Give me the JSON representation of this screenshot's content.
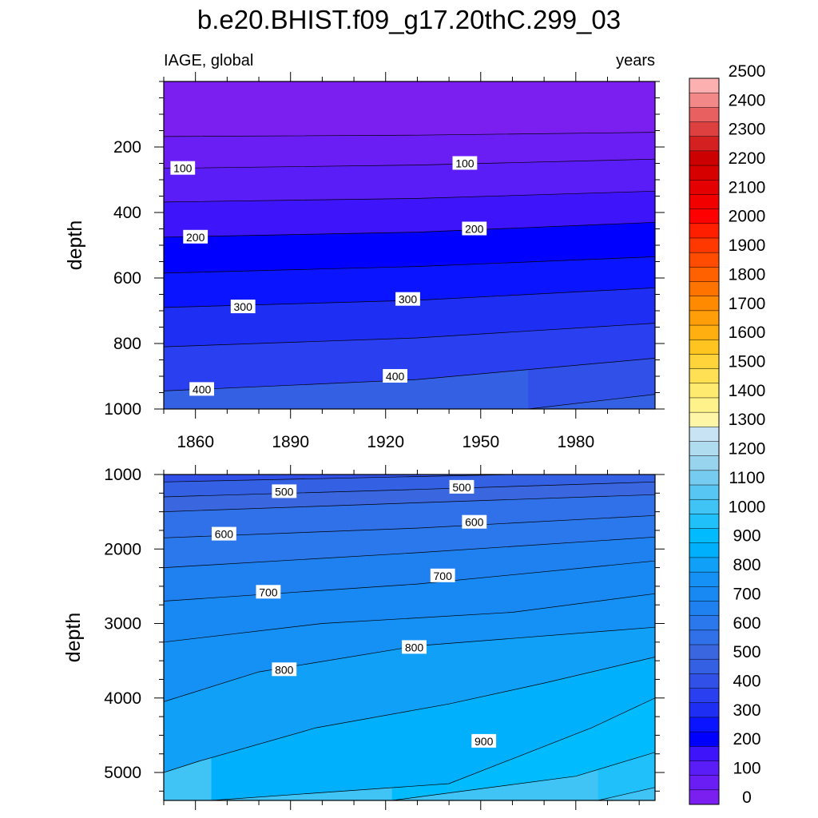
{
  "title": "b.e20.BHIST.f09_g17.20thC.299_03",
  "chart_data": [
    {
      "type": "contour",
      "panel": "upper",
      "title_left": "IAGE, global",
      "title_right": "years",
      "xlabel": "",
      "ylabel": "depth",
      "xlim": [
        1850,
        2005
      ],
      "ylim": [
        1000,
        0
      ],
      "xticks": [
        1860,
        1890,
        1920,
        1950,
        1980
      ],
      "xtick_labels": [
        "1860",
        "1890",
        "1920",
        "1950",
        "1980"
      ],
      "yticks": [
        200,
        400,
        600,
        800,
        1000
      ],
      "ytick_labels": [
        "200",
        "400",
        "600",
        "800",
        "1000"
      ],
      "contour_interval": 50,
      "contours": [
        {
          "level": 50,
          "x": [
            1850,
            1930,
            2005
          ],
          "depth": [
            168,
            164,
            155
          ]
        },
        {
          "level": 100,
          "x": [
            1850,
            1930,
            2005
          ],
          "depth": [
            265,
            255,
            237
          ]
        },
        {
          "level": 150,
          "x": [
            1850,
            1930,
            2005
          ],
          "depth": [
            368,
            357,
            335
          ]
        },
        {
          "level": 200,
          "x": [
            1850,
            1930,
            2005
          ],
          "depth": [
            475,
            460,
            430
          ]
        },
        {
          "level": 250,
          "x": [
            1850,
            1930,
            2005
          ],
          "depth": [
            585,
            565,
            535
          ]
        },
        {
          "level": 300,
          "x": [
            1850,
            1930,
            2005
          ],
          "depth": [
            690,
            668,
            630
          ]
        },
        {
          "level": 350,
          "x": [
            1850,
            1930,
            2005
          ],
          "depth": [
            810,
            783,
            738
          ]
        },
        {
          "level": 400,
          "x": [
            1850,
            1930,
            2005
          ],
          "depth": [
            945,
            910,
            845
          ]
        },
        {
          "level": 450,
          "x": [
            1965,
            2005
          ],
          "depth": [
            1000,
            955
          ]
        }
      ],
      "contour_labels": [
        {
          "text": "100",
          "x": 1856,
          "depth": 265
        },
        {
          "text": "100",
          "x": 1945,
          "depth": 250
        },
        {
          "text": "200",
          "x": 1860,
          "depth": 475
        },
        {
          "text": "200",
          "x": 1948,
          "depth": 450
        },
        {
          "text": "300",
          "x": 1875,
          "depth": 688
        },
        {
          "text": "300",
          "x": 1927,
          "depth": 665
        },
        {
          "text": "400",
          "x": 1862,
          "depth": 940
        },
        {
          "text": "400",
          "x": 1923,
          "depth": 900
        }
      ]
    },
    {
      "type": "contour",
      "panel": "lower",
      "xlabel": "",
      "ylabel": "depth",
      "xlim": [
        1850,
        2005
      ],
      "ylim": [
        5375,
        1000
      ],
      "xticks": [
        1860,
        1890,
        1920,
        1950,
        1980
      ],
      "yticks": [
        1000,
        2000,
        3000,
        4000,
        5000
      ],
      "ytick_labels": [
        "1000",
        "2000",
        "3000",
        "4000",
        "5000"
      ],
      "contour_interval": 50,
      "contours": [
        {
          "level": 450,
          "x": [
            1850,
            1960
          ],
          "depth": [
            1100,
            1000
          ]
        },
        {
          "level": 500,
          "x": [
            1850,
            1930,
            2005
          ],
          "depth": [
            1300,
            1200,
            1100
          ]
        },
        {
          "level": 550,
          "x": [
            1850,
            1930,
            2005
          ],
          "depth": [
            1500,
            1380,
            1270
          ]
        },
        {
          "level": 600,
          "x": [
            1850,
            1930,
            2005
          ],
          "depth": [
            1850,
            1720,
            1550
          ]
        },
        {
          "level": 650,
          "x": [
            1850,
            1930,
            2005
          ],
          "depth": [
            2250,
            2050,
            1840
          ]
        },
        {
          "level": 700,
          "x": [
            1850,
            1930,
            2005
          ],
          "depth": [
            2700,
            2470,
            2160
          ]
        },
        {
          "level": 750,
          "x": [
            1850,
            1900,
            1960,
            2005
          ],
          "depth": [
            3250,
            3000,
            2850,
            2600
          ]
        },
        {
          "level": 800,
          "x": [
            1850,
            1880,
            1930,
            2005
          ],
          "depth": [
            4050,
            3650,
            3300,
            3050
          ]
        },
        {
          "level": 850,
          "x": [
            1850,
            1861,
            1898,
            1940,
            1970,
            2005
          ],
          "depth": [
            5000,
            4850,
            4400,
            4080,
            3800,
            3450
          ]
        },
        {
          "level": 900,
          "x": [
            1865,
            1940,
            1985,
            2005
          ],
          "depth": [
            5375,
            5150,
            4400,
            4000
          ]
        },
        {
          "level": 950,
          "x": [
            1922,
            1980,
            2005
          ],
          "depth": [
            5375,
            5050,
            4730
          ]
        },
        {
          "level": 1000,
          "x": [
            1987,
            2005
          ],
          "depth": [
            5375,
            5200
          ]
        }
      ],
      "contour_labels": [
        {
          "text": "500",
          "x": 1888,
          "depth": 1230
        },
        {
          "text": "500",
          "x": 1944,
          "depth": 1170
        },
        {
          "text": "600",
          "x": 1869,
          "depth": 1800
        },
        {
          "text": "600",
          "x": 1948,
          "depth": 1640
        },
        {
          "text": "700",
          "x": 1883,
          "depth": 2580
        },
        {
          "text": "700",
          "x": 1938,
          "depth": 2360
        },
        {
          "text": "800",
          "x": 1888,
          "depth": 3620
        },
        {
          "text": "800",
          "x": 1929,
          "depth": 3320
        },
        {
          "text": "900",
          "x": 1951,
          "depth": 4580
        }
      ]
    }
  ],
  "colorbar": {
    "labels": [
      "0",
      "100",
      "200",
      "300",
      "400",
      "500",
      "600",
      "700",
      "800",
      "900",
      "1000",
      "1100",
      "1200",
      "1300",
      "1400",
      "1500",
      "1600",
      "1700",
      "1800",
      "1900",
      "2000",
      "2100",
      "2200",
      "2300",
      "2400",
      "2500"
    ],
    "level_step": 50,
    "colors": [
      "#7b1ff1",
      "#6a1ef4",
      "#5a1cf7",
      "#3e14fa",
      "#0000ff",
      "#0a14ff",
      "#1e2ef2",
      "#2a3ff0",
      "#3050e8",
      "#3460e4",
      "#3a66e0",
      "#3070e8",
      "#2a78ec",
      "#1f80ef",
      "#1888f2",
      "#1590f4",
      "#10a0f8",
      "#00b0fc",
      "#00bcff",
      "#20c0fa",
      "#40c4f6",
      "#58c6f2",
      "#76ccf0",
      "#98d4ee",
      "#b0dcf0",
      "#c8e4f4",
      "#fff5a6",
      "#fff28a",
      "#ffea70",
      "#ffe054",
      "#ffd33a",
      "#ffc420",
      "#ffb010",
      "#ff9e08",
      "#ff8a00",
      "#ff7400",
      "#ff6000",
      "#ff4c00",
      "#ff3800",
      "#ff1e00",
      "#ff0000",
      "#f20000",
      "#e40000",
      "#d60000",
      "#cc0000",
      "#d42020",
      "#de4040",
      "#e86060",
      "#f28888",
      "#fcb0b0"
    ]
  }
}
